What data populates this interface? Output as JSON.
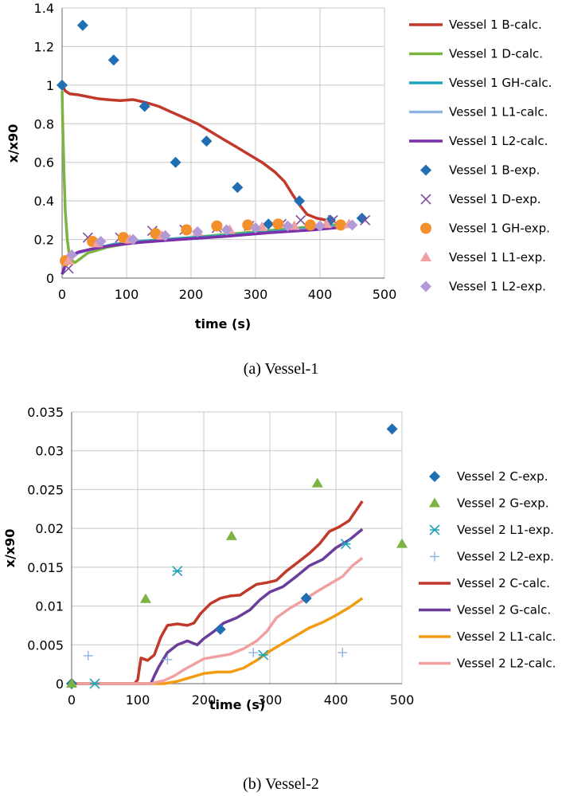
{
  "chart_data": [
    {
      "type": "line",
      "caption": "(a) Vessel-1",
      "xlabel": "time (s)",
      "ylabel": "x/x90",
      "xlim": [
        0,
        500
      ],
      "ylim": [
        0,
        1.4
      ],
      "x_ticks": [
        "0",
        "100",
        "200",
        "300",
        "400",
        "500"
      ],
      "y_ticks": [
        "0",
        "0.2",
        "0.4",
        "0.6",
        "0.8",
        "1",
        "1.2",
        "1.4"
      ],
      "grid": true,
      "legend_position": "right",
      "series": [
        {
          "name": "Vessel 1 B-calc.",
          "kind": "line",
          "color": "#c0392b",
          "points": [
            [
              0,
              1.0
            ],
            [
              5,
              0.97
            ],
            [
              12,
              0.955
            ],
            [
              25,
              0.95
            ],
            [
              40,
              0.94
            ],
            [
              55,
              0.93
            ],
            [
              70,
              0.925
            ],
            [
              90,
              0.92
            ],
            [
              110,
              0.925
            ],
            [
              130,
              0.91
            ],
            [
              150,
              0.89
            ],
            [
              170,
              0.86
            ],
            [
              190,
              0.83
            ],
            [
              210,
              0.8
            ],
            [
              230,
              0.76
            ],
            [
              250,
              0.72
            ],
            [
              270,
              0.68
            ],
            [
              290,
              0.64
            ],
            [
              310,
              0.6
            ],
            [
              330,
              0.55
            ],
            [
              345,
              0.5
            ],
            [
              358,
              0.43
            ],
            [
              368,
              0.38
            ],
            [
              380,
              0.33
            ],
            [
              395,
              0.31
            ],
            [
              410,
              0.3
            ],
            [
              420,
              0.295
            ]
          ]
        },
        {
          "name": "Vessel 1 D-calc.",
          "kind": "line",
          "color": "#7cb342",
          "points": [
            [
              0,
              0.97
            ],
            [
              1,
              0.8
            ],
            [
              3,
              0.55
            ],
            [
              5,
              0.35
            ],
            [
              8,
              0.2
            ],
            [
              12,
              0.1
            ],
            [
              20,
              0.08
            ],
            [
              40,
              0.13
            ],
            [
              70,
              0.16
            ],
            [
              120,
              0.19
            ],
            [
              200,
              0.21
            ],
            [
              300,
              0.24
            ],
            [
              400,
              0.27
            ],
            [
              440,
              0.28
            ]
          ]
        },
        {
          "name": "Vessel 1 GH-calc.",
          "kind": "line",
          "color": "#20a4b8",
          "points": [
            [
              0,
              0.02
            ],
            [
              5,
              0.06
            ],
            [
              12,
              0.1
            ],
            [
              25,
              0.13
            ],
            [
              45,
              0.15
            ],
            [
              80,
              0.175
            ],
            [
              120,
              0.19
            ],
            [
              180,
              0.205
            ],
            [
              250,
              0.22
            ],
            [
              320,
              0.24
            ],
            [
              390,
              0.26
            ],
            [
              440,
              0.275
            ]
          ]
        },
        {
          "name": "Vessel 1 L1-calc.",
          "kind": "line",
          "color": "#8fb4e0",
          "points": [
            [
              0,
              0.02
            ],
            [
              5,
              0.06
            ],
            [
              12,
              0.1
            ],
            [
              25,
              0.13
            ],
            [
              45,
              0.15
            ],
            [
              80,
              0.17
            ],
            [
              120,
              0.185
            ],
            [
              180,
              0.2
            ],
            [
              250,
              0.215
            ],
            [
              320,
              0.235
            ],
            [
              390,
              0.255
            ],
            [
              440,
              0.27
            ]
          ]
        },
        {
          "name": "Vessel 1 L2-calc.",
          "kind": "line",
          "color": "#7b2fa8",
          "points": [
            [
              0,
              0.02
            ],
            [
              5,
              0.07
            ],
            [
              12,
              0.11
            ],
            [
              25,
              0.135
            ],
            [
              45,
              0.15
            ],
            [
              80,
              0.17
            ],
            [
              120,
              0.185
            ],
            [
              180,
              0.2
            ],
            [
              250,
              0.215
            ],
            [
              320,
              0.235
            ],
            [
              390,
              0.25
            ],
            [
              440,
              0.265
            ]
          ]
        },
        {
          "name": "Vessel 1 B-exp.",
          "kind": "marker",
          "marker": "diamond",
          "color": "#1f6fb2",
          "points": [
            [
              0,
              1.0
            ],
            [
              32,
              1.31
            ],
            [
              80,
              1.13
            ],
            [
              128,
              0.89
            ],
            [
              176,
              0.6
            ],
            [
              224,
              0.71
            ],
            [
              272,
              0.47
            ],
            [
              320,
              0.28
            ],
            [
              368,
              0.4
            ],
            [
              416,
              0.3
            ],
            [
              465,
              0.31
            ]
          ]
        },
        {
          "name": "Vessel 1 D-exp.",
          "kind": "marker",
          "marker": "x",
          "color": "#7b4fa0",
          "points": [
            [
              10,
              0.05
            ],
            [
              40,
              0.21
            ],
            [
              90,
              0.21
            ],
            [
              140,
              0.245
            ],
            [
              190,
              0.25
            ],
            [
              240,
              0.26
            ],
            [
              290,
              0.27
            ],
            [
              340,
              0.28
            ],
            [
              370,
              0.3
            ],
            [
              420,
              0.3
            ],
            [
              470,
              0.3
            ]
          ]
        },
        {
          "name": "Vessel 1 GH-exp.",
          "kind": "marker",
          "marker": "circle",
          "color": "#f4902c",
          "points": [
            [
              5,
              0.09
            ],
            [
              47,
              0.19
            ],
            [
              95,
              0.21
            ],
            [
              145,
              0.23
            ],
            [
              193,
              0.25
            ],
            [
              240,
              0.27
            ],
            [
              288,
              0.275
            ],
            [
              335,
              0.28
            ],
            [
              385,
              0.275
            ],
            [
              432,
              0.275
            ]
          ]
        },
        {
          "name": "Vessel 1 L1-exp.",
          "kind": "marker",
          "marker": "triangle",
          "color": "#f0a0a0",
          "points": [
            [
              10,
              0.09
            ],
            [
              55,
              0.18
            ],
            [
              105,
              0.2
            ],
            [
              155,
              0.22
            ],
            [
              210,
              0.24
            ],
            [
              260,
              0.25
            ],
            [
              310,
              0.265
            ],
            [
              360,
              0.27
            ],
            [
              410,
              0.28
            ],
            [
              445,
              0.28
            ]
          ]
        },
        {
          "name": "Vessel 1 L2-exp.",
          "kind": "marker",
          "marker": "diamond",
          "color": "#b39ad6",
          "points": [
            [
              15,
              0.12
            ],
            [
              60,
              0.19
            ],
            [
              110,
              0.2
            ],
            [
              160,
              0.22
            ],
            [
              210,
              0.24
            ],
            [
              255,
              0.25
            ],
            [
              300,
              0.26
            ],
            [
              350,
              0.27
            ],
            [
              400,
              0.27
            ],
            [
              450,
              0.275
            ]
          ]
        }
      ]
    },
    {
      "type": "line",
      "caption": "(b) Vessel-2",
      "xlabel": "time (s)",
      "ylabel": "x/x90",
      "xlim": [
        0,
        500
      ],
      "ylim": [
        0,
        0.035
      ],
      "x_ticks": [
        "0",
        "100",
        "200",
        "300",
        "400",
        "500"
      ],
      "y_ticks": [
        "0",
        "0.005",
        "0.01",
        "0.015",
        "0.02",
        "0.025",
        "0.03",
        "0.035"
      ],
      "grid": true,
      "legend_position": "right",
      "series": [
        {
          "name": "Vessel 2 C-exp.",
          "kind": "marker",
          "marker": "diamond",
          "color": "#1f6fb2",
          "points": [
            [
              0,
              0
            ],
            [
              225,
              0.007
            ],
            [
              355,
              0.011
            ],
            [
              485,
              0.0328
            ]
          ]
        },
        {
          "name": "Vessel 2 G-exp.",
          "kind": "marker",
          "marker": "triangle",
          "color": "#7cb342",
          "points": [
            [
              0,
              0
            ],
            [
              112,
              0.0109
            ],
            [
              242,
              0.019
            ],
            [
              372,
              0.0258
            ],
            [
              500,
              0.018
            ]
          ]
        },
        {
          "name": "Vessel 2 L1-exp.",
          "kind": "marker",
          "marker": "asterisk",
          "color": "#20a4b8",
          "points": [
            [
              35,
              0
            ],
            [
              160,
              0.0145
            ],
            [
              290,
              0.0037
            ],
            [
              415,
              0.018
            ]
          ]
        },
        {
          "name": "Vessel 2 L2-exp.",
          "kind": "marker",
          "marker": "plus",
          "color": "#8fb4e0",
          "points": [
            [
              25,
              0.0036
            ],
            [
              145,
              0.0031
            ],
            [
              275,
              0.004
            ],
            [
              410,
              0.004
            ]
          ]
        },
        {
          "name": "Vessel 2 C-calc.",
          "kind": "line",
          "color": "#c0392b",
          "points": [
            [
              0,
              0
            ],
            [
              95,
              0
            ],
            [
              100,
              0.0005
            ],
            [
              105,
              0.0033
            ],
            [
              115,
              0.003
            ],
            [
              125,
              0.0037
            ],
            [
              135,
              0.006
            ],
            [
              145,
              0.0075
            ],
            [
              160,
              0.0077
            ],
            [
              175,
              0.0075
            ],
            [
              185,
              0.0078
            ],
            [
              195,
              0.009
            ],
            [
              210,
              0.0103
            ],
            [
              225,
              0.011
            ],
            [
              240,
              0.0113
            ],
            [
              255,
              0.0114
            ],
            [
              265,
              0.012
            ],
            [
              280,
              0.0128
            ],
            [
              295,
              0.013
            ],
            [
              310,
              0.0133
            ],
            [
              325,
              0.0145
            ],
            [
              345,
              0.0158
            ],
            [
              360,
              0.0168
            ],
            [
              375,
              0.018
            ],
            [
              390,
              0.0196
            ],
            [
              405,
              0.0202
            ],
            [
              420,
              0.021
            ],
            [
              440,
              0.0235
            ]
          ]
        },
        {
          "name": "Vessel 2 G-calc.",
          "kind": "line",
          "color": "#6a3d9a",
          "points": [
            [
              0,
              0
            ],
            [
              120,
              0
            ],
            [
              125,
              0.001
            ],
            [
              132,
              0.0022
            ],
            [
              145,
              0.004
            ],
            [
              160,
              0.005
            ],
            [
              175,
              0.0055
            ],
            [
              190,
              0.005
            ],
            [
              200,
              0.0058
            ],
            [
              215,
              0.0067
            ],
            [
              230,
              0.0078
            ],
            [
              250,
              0.0085
            ],
            [
              270,
              0.0095
            ],
            [
              285,
              0.0108
            ],
            [
              300,
              0.0118
            ],
            [
              320,
              0.0125
            ],
            [
              340,
              0.0138
            ],
            [
              360,
              0.0152
            ],
            [
              380,
              0.016
            ],
            [
              400,
              0.0175
            ],
            [
              420,
              0.0185
            ],
            [
              440,
              0.0199
            ]
          ]
        },
        {
          "name": "Vessel 2 L1-calc.",
          "kind": "line",
          "color": "#f39c12",
          "points": [
            [
              0,
              0
            ],
            [
              140,
              0
            ],
            [
              160,
              0.0003
            ],
            [
              180,
              0.0008
            ],
            [
              200,
              0.0013
            ],
            [
              220,
              0.0015
            ],
            [
              240,
              0.0015
            ],
            [
              260,
              0.002
            ],
            [
              280,
              0.003
            ],
            [
              300,
              0.0042
            ],
            [
              320,
              0.0052
            ],
            [
              340,
              0.0062
            ],
            [
              360,
              0.0072
            ],
            [
              380,
              0.0079
            ],
            [
              400,
              0.0088
            ],
            [
              420,
              0.0098
            ],
            [
              440,
              0.011
            ]
          ]
        },
        {
          "name": "Vessel 2 L2-calc.",
          "kind": "line",
          "color": "#f0a0a0",
          "points": [
            [
              0,
              0
            ],
            [
              120,
              0
            ],
            [
              140,
              0.0004
            ],
            [
              155,
              0.001
            ],
            [
              170,
              0.0018
            ],
            [
              185,
              0.0025
            ],
            [
              200,
              0.0032
            ],
            [
              220,
              0.0035
            ],
            [
              240,
              0.0038
            ],
            [
              260,
              0.0045
            ],
            [
              280,
              0.0055
            ],
            [
              295,
              0.0067
            ],
            [
              310,
              0.0085
            ],
            [
              330,
              0.0097
            ],
            [
              350,
              0.0107
            ],
            [
              370,
              0.0118
            ],
            [
              390,
              0.0128
            ],
            [
              410,
              0.0138
            ],
            [
              425,
              0.0152
            ],
            [
              440,
              0.0162
            ]
          ]
        }
      ]
    }
  ]
}
